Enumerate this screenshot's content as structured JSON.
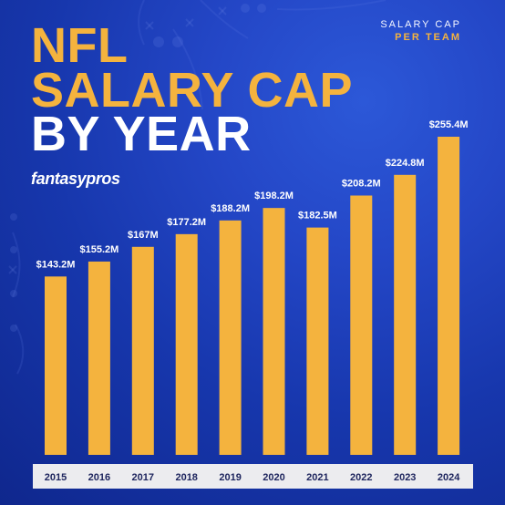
{
  "header": {
    "corner_line_1": "SALARY CAP",
    "corner_line_2": "PER TEAM",
    "title_line_1": "NFL",
    "title_line_2": "SALARY CAP",
    "title_line_3": "BY YEAR",
    "brand": "fantasypros"
  },
  "colors": {
    "background": "#1737ad",
    "accent": "#f4b33e",
    "text": "#ffffff",
    "axis_band": "#ececef",
    "axis_text": "#1d245d"
  },
  "chart_data": {
    "type": "bar",
    "categories": [
      "2015",
      "2016",
      "2017",
      "2018",
      "2019",
      "2020",
      "2021",
      "2022",
      "2023",
      "2024"
    ],
    "values": [
      143.2,
      155.2,
      167,
      177.2,
      188.2,
      198.2,
      182.5,
      208.2,
      224.8,
      255.4
    ],
    "data_labels": [
      "$143.2M",
      "$155.2M",
      "$167M",
      "$177.2M",
      "$188.2M",
      "$198.2M",
      "$182.5M",
      "$208.2M",
      "$224.8M",
      "$255.4M"
    ],
    "title": "NFL SALARY CAP BY YEAR",
    "subtitle": "SALARY CAP PER TEAM",
    "xlabel": "",
    "ylabel": "",
    "grid": false,
    "legend": "none"
  }
}
